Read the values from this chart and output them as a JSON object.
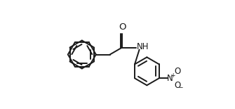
{
  "background_color": "#ffffff",
  "line_color": "#1a1a1a",
  "line_width": 1.4,
  "font_size": 8.5,
  "figsize": [
    3.35,
    1.55
  ],
  "dpi": 100,
  "xlim": [
    0.0,
    1.0
  ],
  "ylim": [
    0.0,
    1.0
  ]
}
